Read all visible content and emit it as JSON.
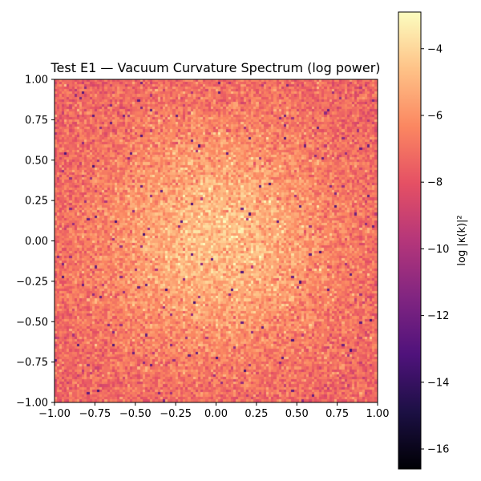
{
  "chart_data": {
    "type": "heatmap",
    "title": "Test E1 — Vacuum Curvature Spectrum (log power)",
    "xlabel": "",
    "ylabel": "",
    "xlim": [
      -1.0,
      1.0
    ],
    "ylim": [
      -1.0,
      1.0
    ],
    "grid": false,
    "colormap": "magma",
    "x_ticks": [
      "−1.00",
      "−0.75",
      "−0.50",
      "−0.25",
      "0.00",
      "0.25",
      "0.50",
      "0.75",
      "1.00"
    ],
    "y_ticks": [
      "1.00",
      "0.75",
      "0.50",
      "0.25",
      "0.00",
      "−0.25",
      "−0.50",
      "−0.75",
      "−1.00"
    ],
    "x_tick_values": [
      -1.0,
      -0.75,
      -0.5,
      -0.25,
      0.0,
      0.25,
      0.5,
      0.75,
      1.0
    ],
    "y_tick_values": [
      1.0,
      0.75,
      0.5,
      0.25,
      0.0,
      -0.25,
      -0.5,
      -0.75,
      -1.0
    ],
    "colorbar": {
      "label": "log |κ(k)|²",
      "range": [
        -16.6,
        -2.9
      ],
      "ticks": [
        "−4",
        "−6",
        "−8",
        "−10",
        "−12",
        "−14",
        "−16"
      ],
      "tick_values": [
        -4,
        -6,
        -8,
        -10,
        -12,
        -14,
        -16
      ]
    },
    "field": {
      "description_values": "log power, peak ≈ -4.7 at center, ≈ -7.5 near edges, isolated dips to ≈ -13",
      "center_value": -4.7,
      "edge_value": -7.5,
      "min_dip": -13.5,
      "resolution": 128
    }
  }
}
